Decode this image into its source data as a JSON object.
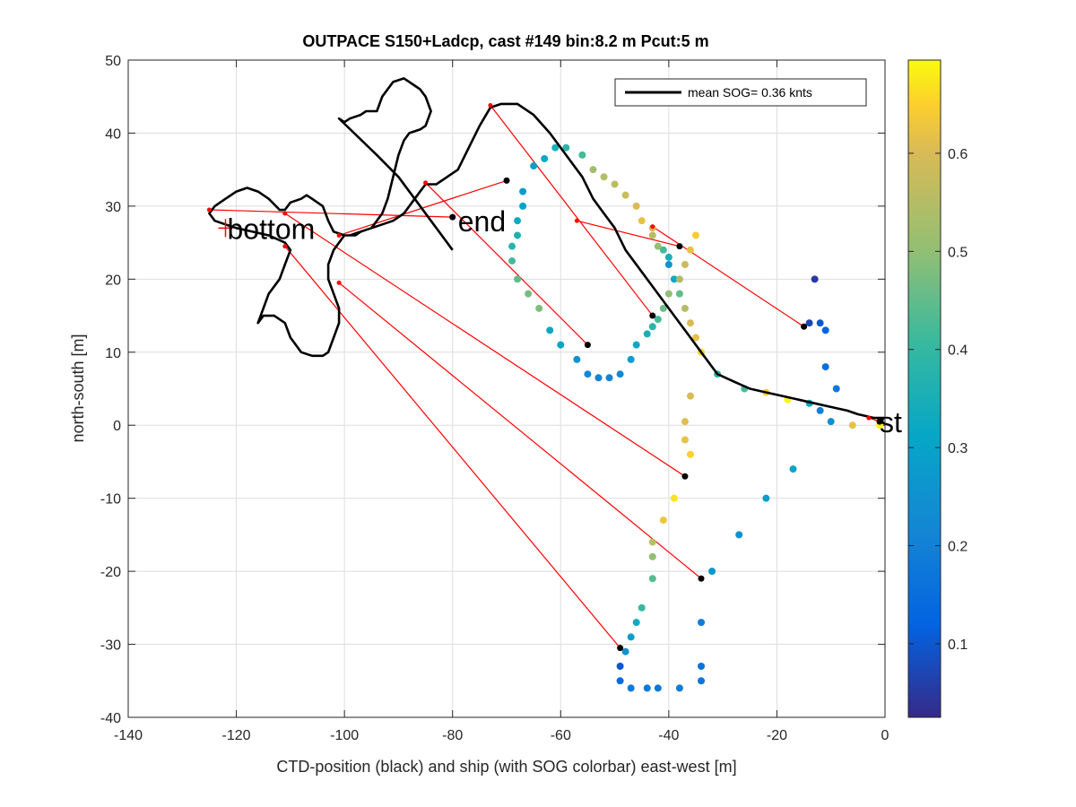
{
  "chart_data": {
    "type": "scatter",
    "title": "OUTPACE S150+Ladcp, cast #149 bin:8.2 m  Pcut:5 m",
    "xlabel": "CTD-position (black) and ship (with SOG colorbar) east-west [m]",
    "ylabel": "north-south [m]",
    "xlim": [
      -140,
      0
    ],
    "ylim": [
      -40,
      50
    ],
    "xticks": [
      "-140",
      "-120",
      "-100",
      "-80",
      "-60",
      "-40",
      "-20",
      "0"
    ],
    "yticks": [
      "-40",
      "-30",
      "-20",
      "-10",
      "0",
      "10",
      "20",
      "30",
      "40",
      "50"
    ],
    "grid": true,
    "legend": {
      "placement": "top-right",
      "entry": "mean SOG=  0.36 knts"
    },
    "colorbar": {
      "range": [
        0.025,
        0.695
      ],
      "ticks": [
        "0.1",
        "0.2",
        "0.3",
        "0.4",
        "0.5",
        "0.6"
      ],
      "colormap": "parula"
    },
    "annotations": [
      {
        "text": "bottom",
        "x": -122,
        "y": 27
      },
      {
        "text": "end",
        "x": -79,
        "y": 28
      },
      {
        "text": "st",
        "x": -1,
        "y": 0.5
      }
    ],
    "ctd_track": {
      "name": "CTD-position",
      "color": "#000000",
      "points": [
        [
          0,
          1
        ],
        [
          -2,
          1
        ],
        [
          -5,
          1.5
        ],
        [
          -7,
          2
        ],
        [
          -10,
          2.5
        ],
        [
          -13,
          3
        ],
        [
          -16,
          3.5
        ],
        [
          -19,
          4
        ],
        [
          -22,
          4.5
        ],
        [
          -25,
          5
        ],
        [
          -28,
          6
        ],
        [
          -31,
          7
        ],
        [
          -32,
          8
        ],
        [
          -34,
          10
        ],
        [
          -36,
          12
        ],
        [
          -39,
          15
        ],
        [
          -42,
          18
        ],
        [
          -45,
          21
        ],
        [
          -48,
          24
        ],
        [
          -50,
          27
        ],
        [
          -52,
          29
        ],
        [
          -54,
          31
        ],
        [
          -56,
          34
        ],
        [
          -59,
          37
        ],
        [
          -62,
          40
        ],
        [
          -65,
          42.5
        ],
        [
          -68,
          44
        ],
        [
          -71,
          44
        ],
        [
          -73,
          43.5
        ],
        [
          -75,
          41
        ],
        [
          -77,
          38
        ],
        [
          -79,
          35
        ],
        [
          -81,
          34
        ],
        [
          -83,
          33
        ],
        [
          -85,
          33
        ],
        [
          -87,
          31
        ],
        [
          -89,
          29
        ],
        [
          -91,
          28
        ],
        [
          -93,
          27.5
        ],
        [
          -95,
          27
        ],
        [
          -97,
          26.5
        ],
        [
          -98,
          26
        ],
        [
          -100,
          26
        ],
        [
          -102,
          26.5
        ],
        [
          -103,
          28
        ],
        [
          -104,
          30
        ],
        [
          -106,
          31
        ],
        [
          -107,
          31.5
        ],
        [
          -108,
          31
        ],
        [
          -110,
          30.5
        ],
        [
          -111,
          29.5
        ],
        [
          -112,
          29.5
        ],
        [
          -114,
          31
        ],
        [
          -116,
          32
        ],
        [
          -118,
          32.5
        ],
        [
          -120,
          32
        ],
        [
          -122,
          31
        ],
        [
          -124,
          30
        ],
        [
          -125,
          29
        ],
        [
          -124,
          28
        ],
        [
          -122,
          27.5
        ],
        [
          -120,
          27
        ],
        [
          -117,
          26.5
        ],
        [
          -114,
          26
        ],
        [
          -111,
          25
        ],
        [
          -110,
          24
        ],
        [
          -111,
          22
        ],
        [
          -112,
          20
        ],
        [
          -114,
          18
        ],
        [
          -115,
          16
        ],
        [
          -116,
          14
        ],
        [
          -115,
          15
        ],
        [
          -113,
          15
        ],
        [
          -111,
          14
        ],
        [
          -110,
          12
        ],
        [
          -109,
          11
        ],
        [
          -108,
          10
        ],
        [
          -106,
          9.5
        ],
        [
          -104,
          9.5
        ],
        [
          -103,
          10
        ],
        [
          -102,
          12
        ],
        [
          -101,
          14
        ],
        [
          -101,
          16
        ],
        [
          -102,
          18
        ],
        [
          -103,
          20
        ],
        [
          -103,
          22
        ],
        [
          -102,
          24
        ],
        [
          -101,
          25
        ],
        [
          -100,
          26
        ],
        [
          -99,
          26
        ],
        [
          -97,
          26.5
        ],
        [
          -95,
          27
        ],
        [
          -93,
          29
        ],
        [
          -92,
          31
        ],
        [
          -91,
          34
        ],
        [
          -90,
          37
        ],
        [
          -89,
          39
        ],
        [
          -88,
          40
        ],
        [
          -86,
          40.5
        ],
        [
          -85,
          41
        ],
        [
          -84,
          43
        ],
        [
          -85,
          45
        ],
        [
          -86,
          46
        ],
        [
          -87,
          46.5
        ],
        [
          -88,
          47
        ],
        [
          -89,
          47.5
        ],
        [
          -91,
          47
        ],
        [
          -93,
          45
        ],
        [
          -94,
          43
        ],
        [
          -96,
          43
        ],
        [
          -97,
          42.5
        ],
        [
          -99,
          42
        ],
        [
          -100,
          41.5
        ],
        [
          -101,
          42
        ],
        [
          -94,
          37
        ],
        [
          -90,
          34
        ],
        [
          -87,
          31
        ],
        [
          -84,
          28
        ],
        [
          -82,
          26
        ],
        [
          -80,
          24
        ]
      ]
    },
    "ship_track": {
      "name": "ship",
      "points": [
        [
          -1,
          0,
          0.69
        ],
        [
          -6,
          0,
          0.62
        ],
        [
          -10,
          0.5,
          0.24
        ],
        [
          -12,
          2,
          0.2
        ],
        [
          -14,
          3,
          0.32
        ],
        [
          -18,
          3.5,
          0.69
        ],
        [
          -22,
          4.5,
          0.65
        ],
        [
          -26,
          5,
          0.42
        ],
        [
          -31,
          7,
          0.38
        ],
        [
          -34,
          10,
          0.66
        ],
        [
          -35,
          12,
          0.62
        ],
        [
          -36,
          14,
          0.6
        ],
        [
          -37,
          16,
          0.55
        ],
        [
          -38,
          18,
          0.45
        ],
        [
          -39,
          20,
          0.32
        ],
        [
          -40,
          22,
          0.25
        ],
        [
          -40,
          23,
          0.35
        ],
        [
          -41,
          24,
          0.42
        ],
        [
          -42,
          24.5,
          0.5
        ],
        [
          -43,
          26,
          0.55
        ],
        [
          -43,
          27,
          0.6
        ],
        [
          -45,
          28,
          0.62
        ],
        [
          -46,
          30,
          0.6
        ],
        [
          -48,
          31.5,
          0.58
        ],
        [
          -50,
          33,
          0.56
        ],
        [
          -52,
          34,
          0.55
        ],
        [
          -54,
          35,
          0.52
        ],
        [
          -56,
          37,
          0.42
        ],
        [
          -59,
          38,
          0.38
        ],
        [
          -61,
          38,
          0.35
        ],
        [
          -63,
          36.5,
          0.32
        ],
        [
          -65,
          35.5,
          0.29
        ],
        [
          -67,
          32,
          0.28
        ],
        [
          -67,
          30,
          0.3
        ],
        [
          -68,
          28,
          0.33
        ],
        [
          -68,
          26,
          0.36
        ],
        [
          -69,
          24.5,
          0.38
        ],
        [
          -69,
          22.5,
          0.42
        ],
        [
          -68,
          20,
          0.45
        ],
        [
          -66,
          18,
          0.47
        ],
        [
          -64,
          16,
          0.48
        ],
        [
          -62,
          13,
          0.32
        ],
        [
          -60,
          11,
          0.3
        ],
        [
          -57,
          9,
          0.25
        ],
        [
          -55,
          7,
          0.22
        ],
        [
          -53,
          6.5,
          0.21
        ],
        [
          -51,
          6.5,
          0.21
        ],
        [
          -49,
          7,
          0.22
        ],
        [
          -47,
          9,
          0.28
        ],
        [
          -46,
          11,
          0.32
        ],
        [
          -44,
          12.5,
          0.35
        ],
        [
          -43,
          13.5,
          0.38
        ],
        [
          -42,
          14.5,
          0.42
        ],
        [
          -41,
          16,
          0.46
        ],
        [
          -40,
          18,
          0.5
        ],
        [
          -38,
          20,
          0.54
        ],
        [
          -37,
          22,
          0.58
        ],
        [
          -36,
          24,
          0.62
        ],
        [
          -35,
          26,
          0.64
        ],
        [
          -36,
          4,
          0.6
        ],
        [
          -37,
          0.5,
          0.61
        ],
        [
          -37,
          -2,
          0.62
        ],
        [
          -36,
          -4,
          0.65
        ],
        [
          -39,
          -10,
          0.67
        ],
        [
          -41,
          -13,
          0.63
        ],
        [
          -43,
          -16,
          0.56
        ],
        [
          -43,
          -18,
          0.5
        ],
        [
          -43,
          -21,
          0.44
        ],
        [
          -45,
          -25,
          0.4
        ],
        [
          -46,
          -27,
          0.33
        ],
        [
          -47,
          -29,
          0.28
        ],
        [
          -48,
          -31,
          0.25
        ],
        [
          -49,
          -33,
          0.1
        ],
        [
          -49,
          -35,
          0.14
        ],
        [
          -47,
          -36,
          0.18
        ],
        [
          -44,
          -36,
          0.18
        ],
        [
          -42,
          -36,
          0.18
        ],
        [
          -38,
          -36,
          0.19
        ],
        [
          -34,
          -35,
          0.17
        ],
        [
          -34,
          -33,
          0.16
        ],
        [
          -34,
          -27,
          0.19
        ],
        [
          -32,
          -20,
          0.26
        ],
        [
          -27,
          -15,
          0.25
        ],
        [
          -22,
          -10,
          0.28
        ],
        [
          -17,
          -6,
          0.3
        ],
        [
          -11,
          8,
          0.15
        ],
        [
          -9,
          5,
          0.18
        ],
        [
          -14,
          14,
          0.07
        ],
        [
          -12,
          14,
          0.1
        ],
        [
          -13,
          20,
          0.05
        ],
        [
          -11,
          13,
          0.12
        ]
      ]
    },
    "cast_markers": [
      {
        "ctd": [
          -1,
          0.5
        ],
        "ship": [
          -3,
          1
        ]
      },
      {
        "ctd": [
          -15,
          13.5
        ],
        "ship": [
          -43,
          27.2
        ]
      },
      {
        "ctd": [
          -38,
          24.5
        ],
        "ship": [
          -57,
          28
        ]
      },
      {
        "ctd": [
          -43,
          15
        ],
        "ship": [
          -73,
          43.8
        ]
      },
      {
        "ctd": [
          -55,
          11
        ],
        "ship": [
          -85,
          33.2
        ]
      },
      {
        "ctd": [
          -70,
          33.5
        ],
        "ship": [
          -101,
          26
        ]
      },
      {
        "ctd": [
          -37,
          -7
        ],
        "ship": [
          -111,
          29
        ]
      },
      {
        "ctd": [
          -34,
          -21
        ],
        "ship": [
          -101,
          19.5
        ]
      },
      {
        "ctd": [
          -49,
          -30.5
        ],
        "ship": [
          -111,
          24.5
        ]
      },
      {
        "ctd": [
          -80,
          28.5
        ],
        "ship": [
          -125,
          29.5
        ]
      }
    ]
  }
}
